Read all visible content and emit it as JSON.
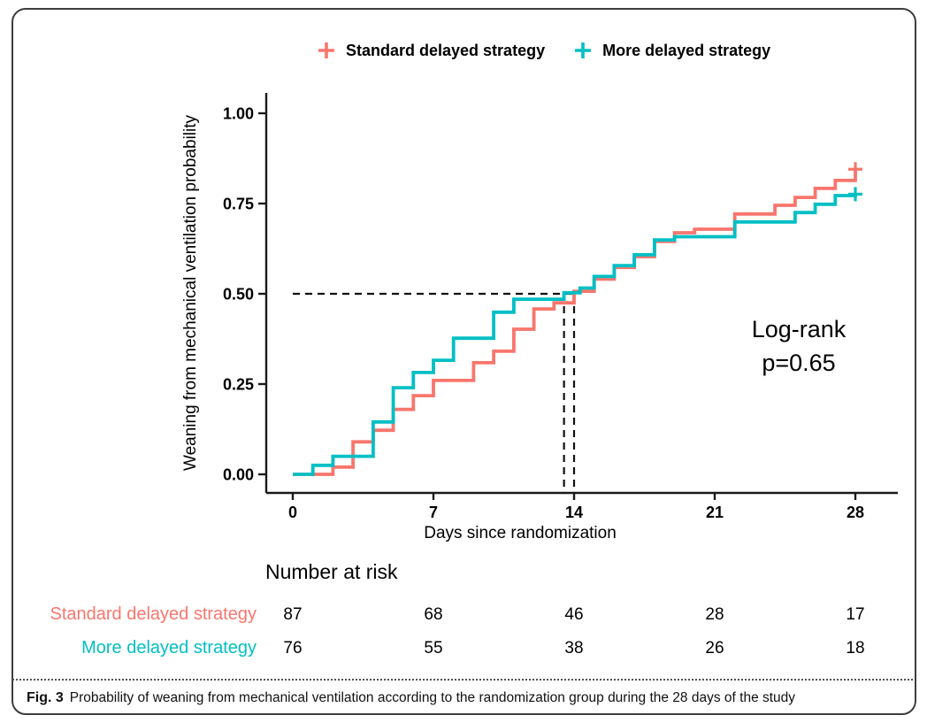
{
  "figure": {
    "caption_label": "Fig. 3",
    "caption_text": "Probability of weaning from mechanical ventilation according to the randomization group during the 28 days of the study"
  },
  "legend": {
    "items": [
      {
        "label": "Standard delayed strategy",
        "color": "#F8766D",
        "marker": "plus-icon"
      },
      {
        "label": "More delayed strategy",
        "color": "#00BFC4",
        "marker": "plus-icon"
      }
    ]
  },
  "annotation": {
    "line1": "Log-rank",
    "line2": "p=0.65"
  },
  "risk_table": {
    "title": "Number at risk",
    "days": [
      0,
      7,
      14,
      21,
      28
    ],
    "rows": [
      {
        "label": "Standard delayed strategy",
        "color": "#F8766D",
        "values": [
          87,
          68,
          46,
          28,
          17
        ]
      },
      {
        "label": "More delayed strategy",
        "color": "#00BFC4",
        "values": [
          76,
          55,
          38,
          26,
          18
        ]
      }
    ]
  },
  "chart_data": {
    "type": "line",
    "subtype": "step-survival",
    "title": "",
    "xlabel": "Days since randomization",
    "ylabel": "Weaning from mechanical ventilation probability",
    "xlim": [
      0,
      28
    ],
    "ylim": [
      0,
      1
    ],
    "xticks": [
      0,
      7,
      14,
      21,
      28
    ],
    "ytick_values": [
      0,
      0.25,
      0.5,
      0.75,
      1
    ],
    "ytick_labels": [
      "0.00",
      "0.25",
      "0.50",
      "0.75",
      "1.00"
    ],
    "grid": false,
    "legend_position": "top",
    "axis_color": "#1a1a1a",
    "series": [
      {
        "name": "Standard delayed strategy",
        "color": "#F8766D",
        "points": [
          [
            0,
            0
          ],
          [
            2,
            0.02
          ],
          [
            3,
            0.09
          ],
          [
            4,
            0.122
          ],
          [
            5,
            0.18
          ],
          [
            6,
            0.218
          ],
          [
            7,
            0.26
          ],
          [
            9,
            0.309
          ],
          [
            10,
            0.341
          ],
          [
            11,
            0.402
          ],
          [
            12,
            0.458
          ],
          [
            13,
            0.475
          ],
          [
            14,
            0.507
          ],
          [
            15,
            0.541
          ],
          [
            16,
            0.573
          ],
          [
            17,
            0.603
          ],
          [
            18,
            0.645
          ],
          [
            19,
            0.669
          ],
          [
            20,
            0.679
          ],
          [
            22,
            0.721
          ],
          [
            24,
            0.745
          ],
          [
            25,
            0.767
          ],
          [
            26,
            0.792
          ],
          [
            27,
            0.814
          ],
          [
            28,
            0.845
          ]
        ],
        "censor_marks": [
          [
            28,
            0.845
          ]
        ]
      },
      {
        "name": "More delayed strategy",
        "color": "#00BFC4",
        "points": [
          [
            0,
            0
          ],
          [
            1,
            0.025
          ],
          [
            2,
            0.05
          ],
          [
            4,
            0.145
          ],
          [
            5,
            0.24
          ],
          [
            6,
            0.282
          ],
          [
            7,
            0.316
          ],
          [
            8,
            0.377
          ],
          [
            10,
            0.449
          ],
          [
            11,
            0.485
          ],
          [
            13.5,
            0.503
          ],
          [
            14.3,
            0.516
          ],
          [
            15,
            0.548
          ],
          [
            16,
            0.578
          ],
          [
            17,
            0.608
          ],
          [
            18,
            0.649
          ],
          [
            19,
            0.658
          ],
          [
            22,
            0.699
          ],
          [
            25,
            0.725
          ],
          [
            26,
            0.748
          ],
          [
            27,
            0.772
          ],
          [
            28,
            0.776
          ]
        ],
        "censor_marks": [
          [
            28,
            0.776
          ]
        ]
      }
    ],
    "reference_lines": {
      "horizontal": {
        "y": 0.5,
        "x_from": 0,
        "x_to": 14
      },
      "vertical": [
        {
          "x": 13.5,
          "y_from": 0,
          "y_to": 0.5
        },
        {
          "x": 14,
          "y_from": 0,
          "y_to": 0.5
        }
      ],
      "style": "dashed",
      "color": "#111111"
    }
  }
}
